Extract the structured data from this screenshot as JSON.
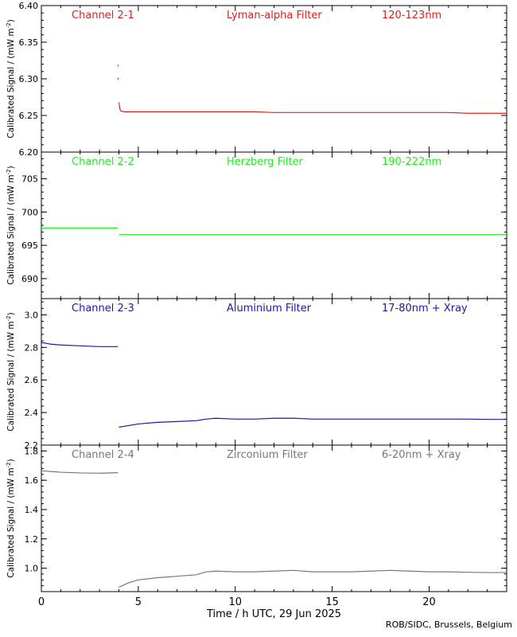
{
  "credit": "ROB/SIDC, Brussels, Belgium",
  "chart_data": {
    "type": "line",
    "xlabel": "Time / h UTC, 29 Jun 2025",
    "xlim": [
      0,
      24
    ],
    "xticks": [
      0,
      5,
      10,
      15,
      20
    ],
    "xtick_labels": [
      "0",
      "5",
      "10",
      "15",
      "20"
    ],
    "panels": [
      {
        "labels": [
          "Channel 2-1",
          "Lyman-alpha Filter",
          "120-123nm"
        ],
        "color": "#dd2222",
        "ylabel": "Calibrated Signal / (mW m",
        "ylabel_sup": "-2",
        "ylim": [
          6.2,
          6.4
        ],
        "yticks": [
          6.2,
          6.25,
          6.3,
          6.35,
          6.4
        ],
        "ytick_labels": [
          "6.20",
          "6.25",
          "6.30",
          "6.35",
          "6.40"
        ],
        "segments": [
          [
            [
              4.0,
              6.268
            ],
            [
              4.05,
              6.259
            ],
            [
              4.1,
              6.256
            ],
            [
              4.3,
              6.255
            ],
            [
              5,
              6.255
            ],
            [
              6,
              6.255
            ],
            [
              8,
              6.255
            ],
            [
              10,
              6.255
            ],
            [
              11,
              6.255
            ],
            [
              12,
              6.254
            ],
            [
              14,
              6.254
            ],
            [
              15,
              6.254
            ],
            [
              16,
              6.254
            ],
            [
              17,
              6.254
            ],
            [
              18,
              6.254
            ],
            [
              19,
              6.254
            ],
            [
              20,
              6.254
            ],
            [
              21,
              6.254
            ],
            [
              22,
              6.253
            ],
            [
              23,
              6.253
            ],
            [
              24,
              6.253
            ]
          ]
        ],
        "spikes": [
          [
            3.95,
            6.318
          ],
          [
            3.95,
            6.3
          ]
        ]
      },
      {
        "labels": [
          "Channel 2-2",
          "Herzberg Filter",
          "190-222nm"
        ],
        "color": "#22ee22",
        "ylabel": "Calibrated Signal / (mW m",
        "ylabel_sup": "-2",
        "ylim": [
          687,
          709
        ],
        "yticks": [
          690,
          695,
          700,
          705
        ],
        "ytick_labels": [
          "690",
          "695",
          "700",
          "705"
        ],
        "segments": [
          [
            [
              0,
              697.6
            ],
            [
              1,
              697.6
            ],
            [
              2,
              697.6
            ],
            [
              3,
              697.6
            ],
            [
              3.95,
              697.6
            ]
          ],
          [
            [
              4.0,
              696.6
            ],
            [
              6,
              696.6
            ],
            [
              8,
              696.6
            ],
            [
              10,
              696.6
            ],
            [
              12,
              696.6
            ],
            [
              14,
              696.6
            ],
            [
              16,
              696.6
            ],
            [
              18,
              696.6
            ],
            [
              20,
              696.6
            ],
            [
              22,
              696.6
            ],
            [
              24,
              696.6
            ]
          ]
        ],
        "spikes": []
      },
      {
        "labels": [
          "Channel 2-3",
          "Aluminium Filter",
          "17-80nm + Xray"
        ],
        "color": "#1a1aaa",
        "ylabel": "Calibrated Signal / (mW m",
        "ylabel_sup": "-2",
        "ylim": [
          2.2,
          3.1
        ],
        "yticks": [
          2.2,
          2.4,
          2.6,
          2.8,
          3.0
        ],
        "ytick_labels": [
          "2.2",
          "2.4",
          "2.6",
          "2.8",
          "3.0"
        ],
        "segments": [
          [
            [
              0,
              2.83
            ],
            [
              0.5,
              2.82
            ],
            [
              1,
              2.815
            ],
            [
              2,
              2.81
            ],
            [
              3,
              2.805
            ],
            [
              3.95,
              2.805
            ]
          ],
          [
            [
              4.0,
              2.31
            ],
            [
              4.5,
              2.32
            ],
            [
              5,
              2.33
            ],
            [
              6,
              2.34
            ],
            [
              7,
              2.345
            ],
            [
              8,
              2.35
            ],
            [
              8.5,
              2.36
            ],
            [
              9,
              2.365
            ],
            [
              10,
              2.36
            ],
            [
              11,
              2.36
            ],
            [
              12,
              2.365
            ],
            [
              13,
              2.365
            ],
            [
              14,
              2.36
            ],
            [
              15,
              2.36
            ],
            [
              16,
              2.36
            ],
            [
              17,
              2.36
            ],
            [
              18,
              2.36
            ],
            [
              19,
              2.36
            ],
            [
              20,
              2.36
            ],
            [
              21,
              2.36
            ],
            [
              22,
              2.36
            ],
            [
              23,
              2.358
            ],
            [
              24,
              2.358
            ]
          ]
        ],
        "spikes": []
      },
      {
        "labels": [
          "Channel 2-4",
          "Zirconium Filter",
          "6-20nm + Xray"
        ],
        "color": "#777777",
        "ylabel": "Calibrated Signal / (mW m",
        "ylabel_sup": "-2",
        "ylim": [
          0.84,
          1.84
        ],
        "yticks": [
          1.0,
          1.2,
          1.4,
          1.6,
          1.8
        ],
        "ytick_labels": [
          "1.0",
          "1.2",
          "1.4",
          "1.6",
          "1.8"
        ],
        "segments": [
          [
            [
              0,
              1.665
            ],
            [
              0.5,
              1.66
            ],
            [
              1,
              1.655
            ],
            [
              2,
              1.65
            ],
            [
              3,
              1.648
            ],
            [
              3.95,
              1.652
            ]
          ],
          [
            [
              4.0,
              0.87
            ],
            [
              4.5,
              0.9
            ],
            [
              5,
              0.92
            ],
            [
              6,
              0.935
            ],
            [
              7,
              0.945
            ],
            [
              8,
              0.955
            ],
            [
              8.5,
              0.975
            ],
            [
              9,
              0.98
            ],
            [
              10,
              0.975
            ],
            [
              11,
              0.975
            ],
            [
              12,
              0.98
            ],
            [
              13,
              0.985
            ],
            [
              14,
              0.975
            ],
            [
              15,
              0.975
            ],
            [
              16,
              0.975
            ],
            [
              17,
              0.98
            ],
            [
              18,
              0.985
            ],
            [
              19,
              0.98
            ],
            [
              20,
              0.975
            ],
            [
              21,
              0.975
            ],
            [
              22,
              0.972
            ],
            [
              23,
              0.97
            ],
            [
              24,
              0.97
            ]
          ]
        ],
        "spikes": []
      }
    ]
  }
}
